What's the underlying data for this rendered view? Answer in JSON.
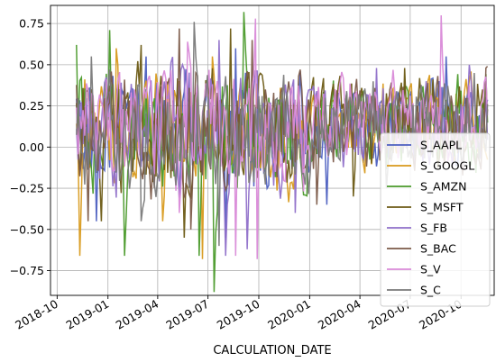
{
  "chart_data": {
    "type": "line",
    "title": "",
    "xlabel": "CALCULATION_DATE",
    "ylabel": "",
    "x_range": [
      "2018-09-19",
      "2020-11-30"
    ],
    "data_start": "2018-11-05",
    "data_end": "2020-11-20",
    "ylim": [
      -0.9,
      0.86
    ],
    "grid": true,
    "legend_placement": "lower-right",
    "x_ticks": [
      {
        "date": "2018-10-01",
        "label": "2018-10"
      },
      {
        "date": "2019-01-01",
        "label": "2019-01"
      },
      {
        "date": "2019-04-01",
        "label": "2019-04"
      },
      {
        "date": "2019-07-01",
        "label": "2019-07"
      },
      {
        "date": "2019-10-01",
        "label": "2019-10"
      },
      {
        "date": "2020-01-01",
        "label": "2020-01"
      },
      {
        "date": "2020-04-01",
        "label": "2020-04"
      },
      {
        "date": "2020-07-01",
        "label": "2020-07"
      },
      {
        "date": "2020-10-01",
        "label": "2020-10"
      }
    ],
    "y_ticks": [
      {
        "value": 0.75,
        "label": "0.75"
      },
      {
        "value": 0.5,
        "label": "0.50"
      },
      {
        "value": 0.25,
        "label": "0.25"
      },
      {
        "value": 0.0,
        "label": "0.00"
      },
      {
        "value": -0.25,
        "label": "−0.25"
      },
      {
        "value": -0.5,
        "label": "−0.50"
      },
      {
        "value": -0.75,
        "label": "−0.75"
      }
    ],
    "series": [
      {
        "name": "S_AAPL",
        "color": "#4c5fc0",
        "peaks": [
          [
            "2019-03-10",
            0.55
          ],
          [
            "2019-08-20",
            0.6
          ],
          [
            "2020-09-05",
            0.55
          ]
        ],
        "troughs": [
          [
            "2018-12-10",
            -0.45
          ],
          [
            "2019-08-01",
            -0.55
          ],
          [
            "2020-02-01",
            -0.35
          ]
        ]
      },
      {
        "name": "S_GOOGL",
        "color": "#d89a1c",
        "peaks": [
          [
            "2019-01-15",
            0.6
          ],
          [
            "2019-07-10",
            0.55
          ],
          [
            "2020-08-01",
            0.4
          ]
        ],
        "troughs": [
          [
            "2018-11-12",
            -0.66
          ],
          [
            "2019-06-20",
            -0.68
          ],
          [
            "2019-04-10",
            -0.45
          ]
        ]
      },
      {
        "name": "S_AMZN",
        "color": "#4a9a2a",
        "peaks": [
          [
            "2018-11-05",
            0.62
          ],
          [
            "2019-01-03",
            0.71
          ],
          [
            "2019-09-05",
            0.82
          ]
        ],
        "troughs": [
          [
            "2019-07-13",
            -0.88
          ],
          [
            "2019-02-01",
            -0.66
          ],
          [
            "2019-06-15",
            -0.66
          ]
        ]
      },
      {
        "name": "S_MSFT",
        "color": "#6b5a14",
        "peaks": [
          [
            "2019-03-01",
            0.62
          ],
          [
            "2019-08-10",
            0.72
          ],
          [
            "2020-06-20",
            0.48
          ]
        ],
        "troughs": [
          [
            "2018-12-20",
            -0.45
          ],
          [
            "2019-05-20",
            -0.55
          ],
          [
            "2020-03-20",
            -0.3
          ]
        ]
      },
      {
        "name": "S_FB",
        "color": "#8f6fc9",
        "peaks": [
          [
            "2019-07-20",
            0.65
          ],
          [
            "2020-05-01",
            0.48
          ],
          [
            "2020-10-15",
            0.5
          ]
        ],
        "troughs": [
          [
            "2019-08-01",
            -0.66
          ],
          [
            "2019-09-10",
            -0.62
          ],
          [
            "2019-12-05",
            -0.4
          ]
        ]
      },
      {
        "name": "S_BAC",
        "color": "#7b5a48",
        "peaks": [
          [
            "2019-05-10",
            0.72
          ],
          [
            "2019-09-20",
            0.65
          ],
          [
            "2020-11-15",
            0.48
          ]
        ],
        "troughs": [
          [
            "2018-11-25",
            -0.45
          ],
          [
            "2019-06-01",
            -0.5
          ],
          [
            "2020-01-15",
            -0.35
          ]
        ]
      },
      {
        "name": "S_V",
        "color": "#d98ad8",
        "peaks": [
          [
            "2019-09-25",
            0.78
          ],
          [
            "2020-08-25",
            0.8
          ],
          [
            "2019-05-25",
            0.64
          ]
        ],
        "troughs": [
          [
            "2019-09-28",
            -0.68
          ],
          [
            "2019-08-20",
            -0.66
          ],
          [
            "2019-05-10",
            -0.4
          ]
        ]
      },
      {
        "name": "S_C",
        "color": "#7a7a7a",
        "peaks": [
          [
            "2019-06-05",
            0.76
          ],
          [
            "2018-12-01",
            0.55
          ],
          [
            "2020-10-25",
            0.45
          ]
        ],
        "troughs": [
          [
            "2019-07-20",
            -0.6
          ],
          [
            "2019-03-01",
            -0.45
          ],
          [
            "2020-05-20",
            -0.25
          ]
        ]
      }
    ]
  }
}
